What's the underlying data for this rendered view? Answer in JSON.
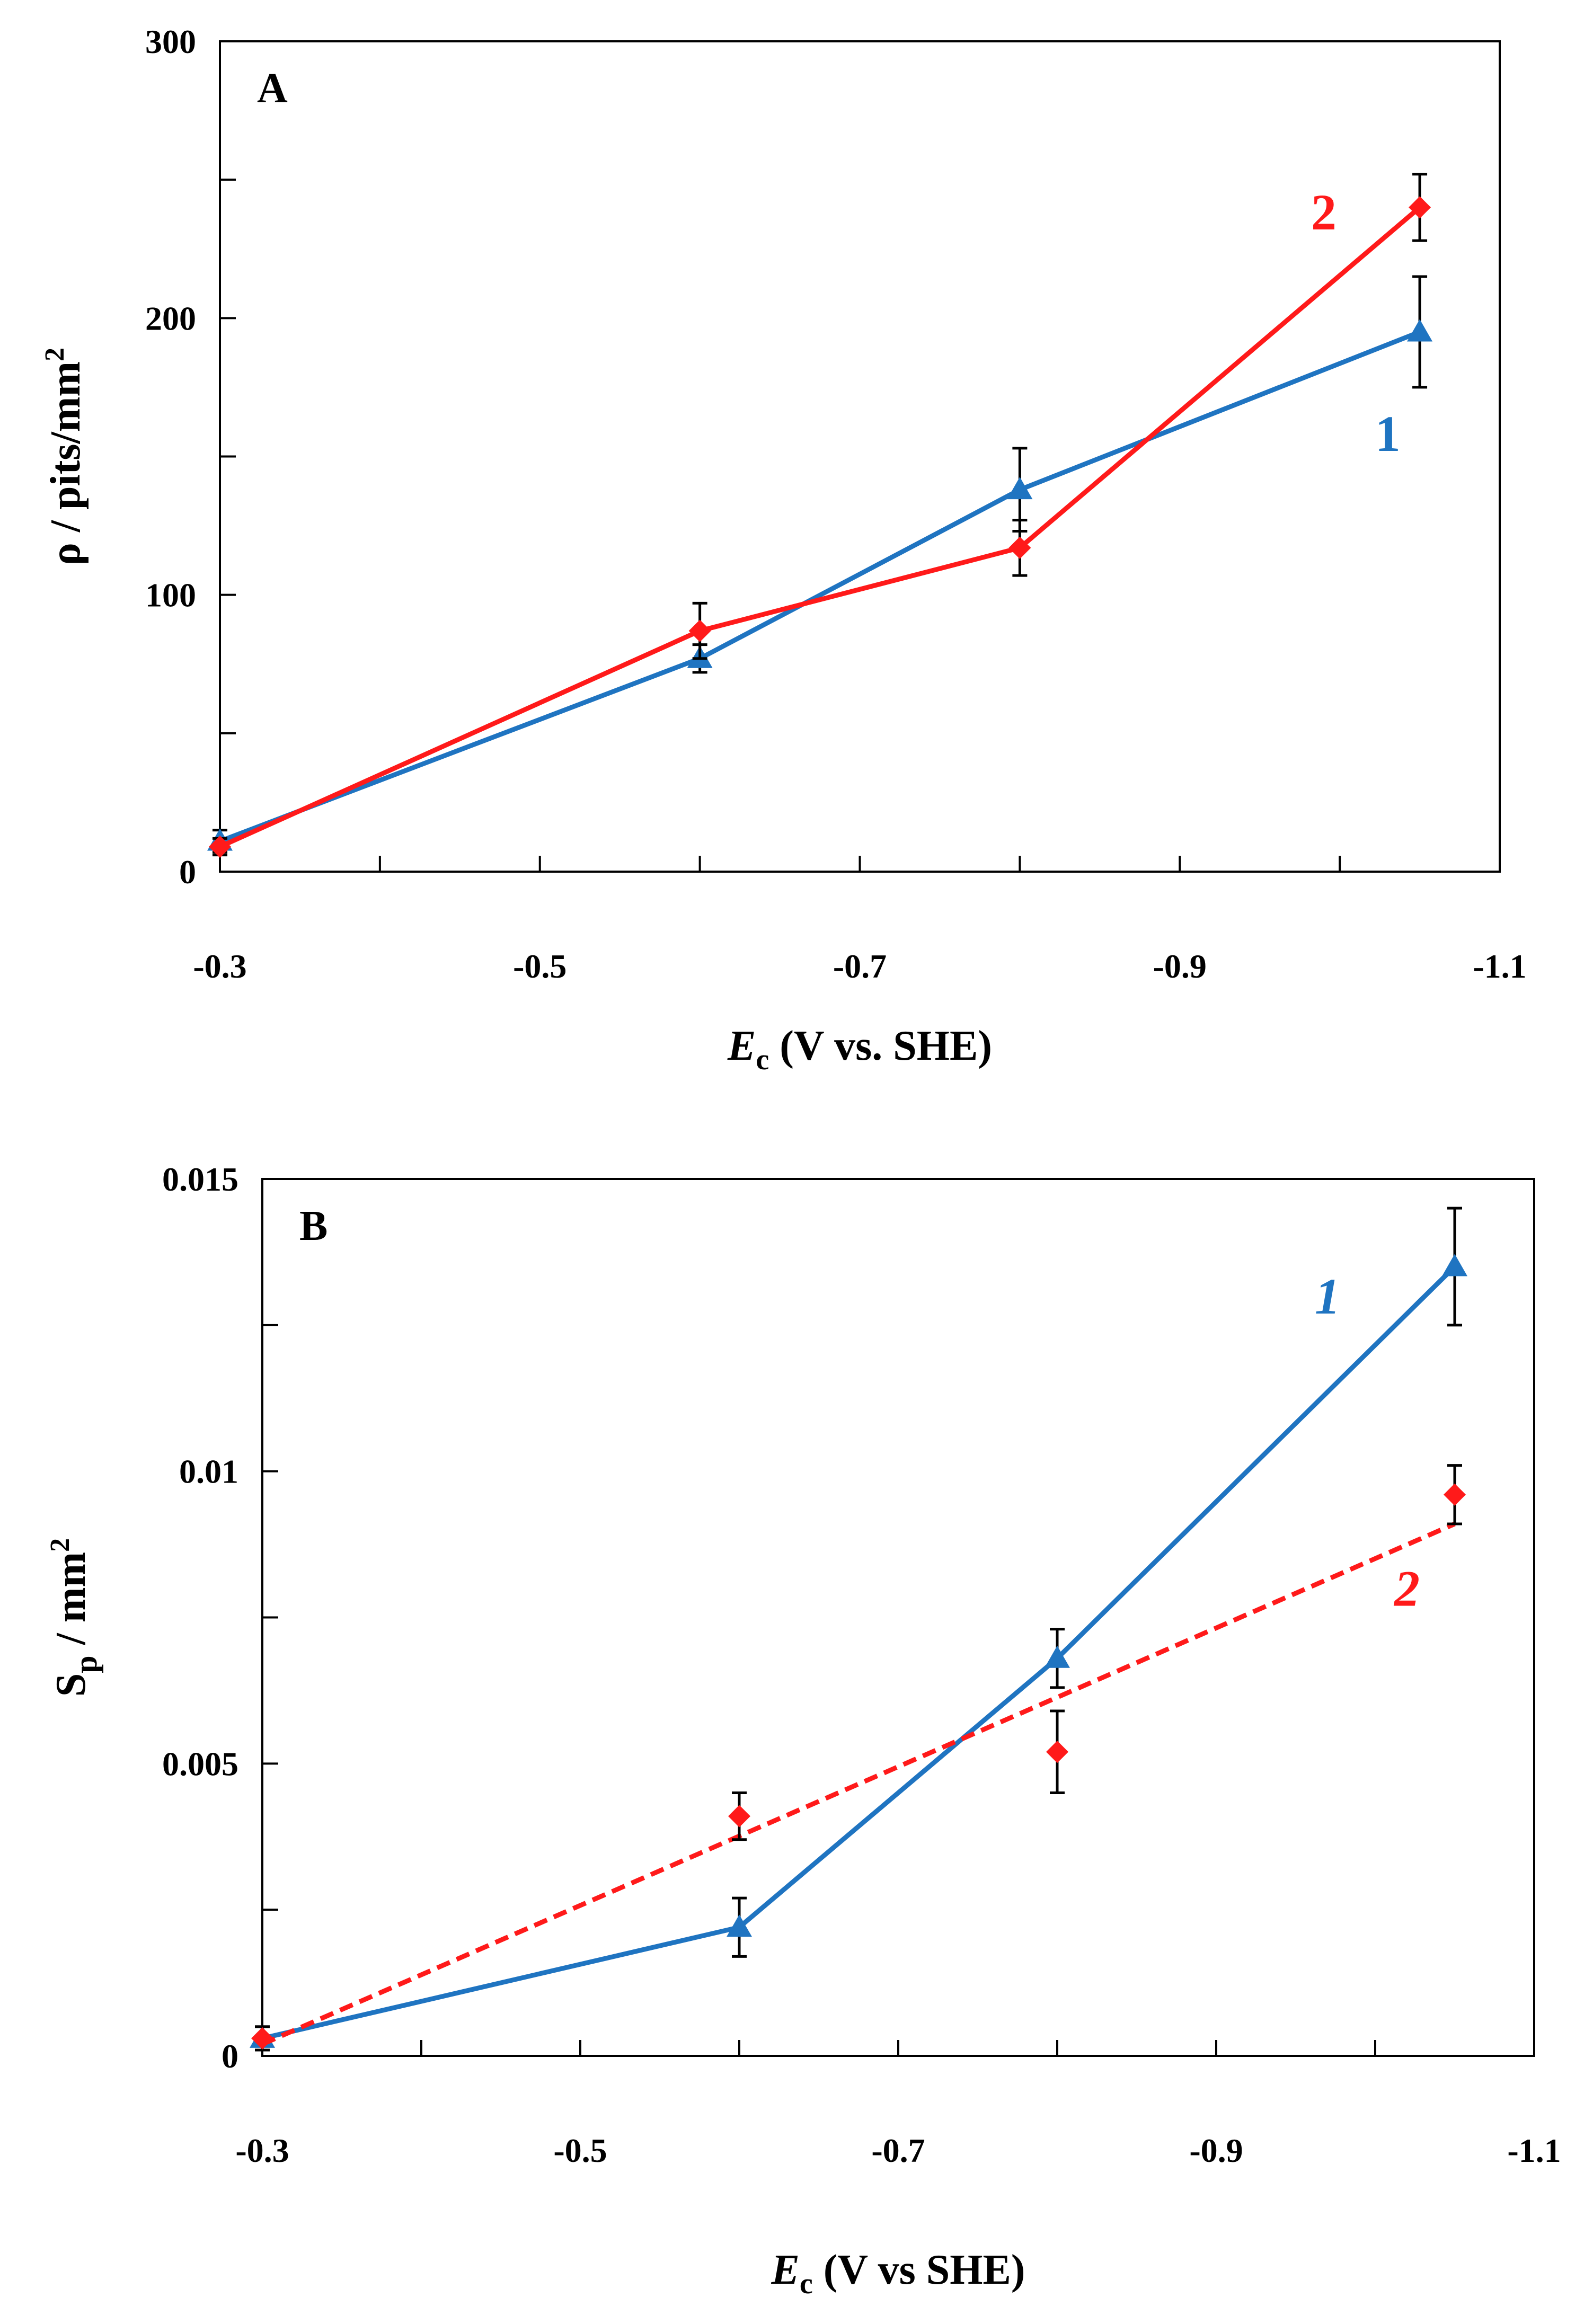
{
  "colors": {
    "series1": "#1f74c1",
    "series2": "#ff1a1a"
  },
  "chart_data": [
    {
      "id": "A",
      "type": "line",
      "panel_label": "A",
      "xlabel_var": "E",
      "xlabel_sub": "c",
      "xlabel_rest": " (V vs. SHE)",
      "ylabel_text": "ρ / pits/mm",
      "ylabel_sup": "2",
      "ylabel_sub": "",
      "xlim": [
        -0.3,
        -1.1
      ],
      "ylim": [
        0,
        300
      ],
      "xticks": [
        -0.3,
        -0.4,
        -0.5,
        -0.6,
        -0.7,
        -0.8,
        -0.9,
        -1.0,
        -1.1
      ],
      "xtick_labels": [
        "-0.3",
        "",
        "-0.5",
        "",
        "-0.7",
        "",
        "-0.9",
        "",
        "-1.1"
      ],
      "yticks": [
        0,
        50,
        100,
        150,
        200,
        250,
        300
      ],
      "ytick_labels": [
        "0",
        "",
        "100",
        "",
        "200",
        "",
        "300"
      ],
      "series": [
        {
          "name": "1",
          "label": "1",
          "label_style": "normal",
          "color_key": "series1",
          "marker": "triangle",
          "line": "solid",
          "x": [
            -0.3,
            -0.6,
            -0.8,
            -1.05
          ],
          "y": [
            11,
            77,
            138,
            195
          ],
          "err": [
            4,
            5,
            15,
            20
          ],
          "label_pos": [
            -1.03,
            152
          ]
        },
        {
          "name": "2",
          "label": "2",
          "label_style": "normal",
          "color_key": "series2",
          "marker": "diamond",
          "line": "solid",
          "x": [
            -0.3,
            -0.6,
            -0.8,
            -1.05
          ],
          "y": [
            9,
            87,
            117,
            240
          ],
          "err": [
            3,
            10,
            10,
            12
          ],
          "label_pos": [
            -0.99,
            232
          ]
        }
      ]
    },
    {
      "id": "B",
      "type": "line",
      "panel_label": "B",
      "xlabel_var": "E",
      "xlabel_sub": "c",
      "xlabel_rest": " (V vs SHE)",
      "ylabel_text": "S",
      "ylabel_sub": "p",
      "ylabel_rest": " / mm",
      "ylabel_sup": "2",
      "xlim": [
        -0.3,
        -1.1
      ],
      "ylim": [
        0,
        0.015
      ],
      "xticks": [
        -0.3,
        -0.4,
        -0.5,
        -0.6,
        -0.7,
        -0.8,
        -0.9,
        -1.0,
        -1.1
      ],
      "xtick_labels": [
        "-0.3",
        "",
        "-0.5",
        "",
        "-0.7",
        "",
        "-0.9",
        "",
        "-1.1"
      ],
      "yticks": [
        0,
        0.0025,
        0.005,
        0.0075,
        0.01,
        0.0125,
        0.015
      ],
      "ytick_labels": [
        "0",
        "",
        "0.005",
        "",
        "0.01",
        "",
        "0.015"
      ],
      "series": [
        {
          "name": "1",
          "label": "1",
          "label_style": "italic",
          "color_key": "series1",
          "marker": "triangle",
          "line": "solid",
          "x": [
            -0.3,
            -0.6,
            -0.8,
            -1.05
          ],
          "y": [
            0.0003,
            0.0022,
            0.0068,
            0.0135
          ],
          "err": [
            0.0002,
            0.0005,
            0.0005,
            0.001
          ],
          "label_pos": [
            -0.97,
            0.0127
          ]
        },
        {
          "name": "2",
          "label": "2",
          "label_style": "italic",
          "color_key": "series2",
          "marker": "diamond",
          "line": "none",
          "x": [
            -0.3,
            -0.6,
            -0.8,
            -1.05
          ],
          "y": [
            0.0003,
            0.0041,
            0.0052,
            0.0096
          ],
          "err": [
            0.0002,
            0.0004,
            0.0007,
            0.0005
          ],
          "trend_x": [
            -0.3,
            -1.05
          ],
          "trend_y": [
            0.0002,
            0.0091
          ],
          "label_pos": [
            -1.02,
            0.0077
          ]
        }
      ]
    }
  ]
}
